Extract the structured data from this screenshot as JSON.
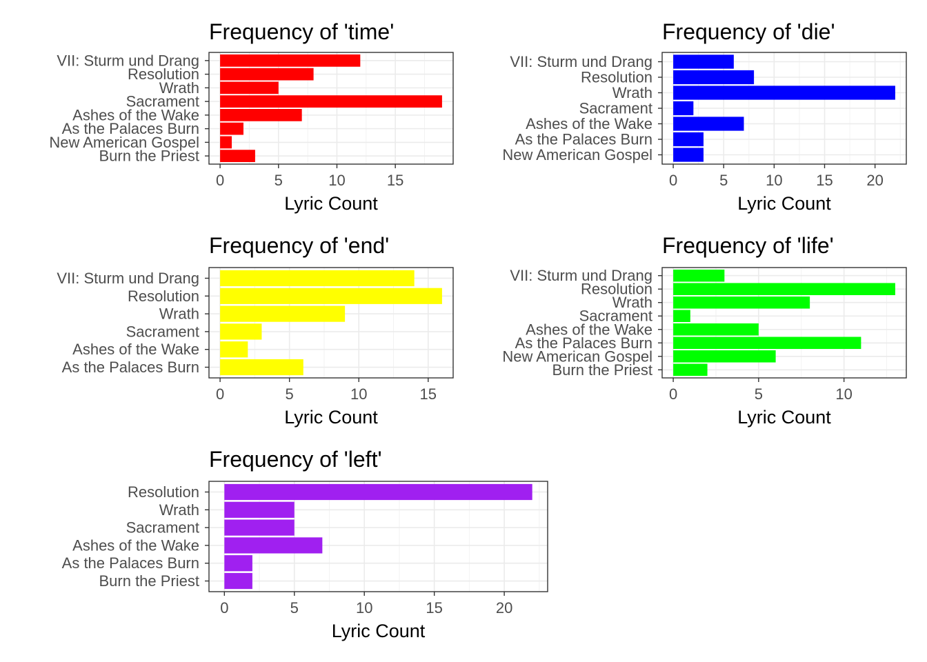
{
  "chart_data": [
    {
      "type": "bar",
      "orientation": "horizontal",
      "title": "Frequency of 'time'",
      "xlabel": "Lyric Count",
      "ylabel": "",
      "color": "#ff0000",
      "categories": [
        "VII: Sturm und Drang",
        "Resolution",
        "Wrath",
        "Sacrament",
        "Ashes of the Wake",
        "As the Palaces Burn",
        "New American Gospel",
        "Burn the Priest"
      ],
      "values": [
        12,
        8,
        5,
        19,
        7,
        2,
        1,
        3
      ],
      "xticks": [
        0,
        5,
        10,
        15
      ],
      "xlim": [
        -0.95,
        19.95
      ],
      "grid": true
    },
    {
      "type": "bar",
      "orientation": "horizontal",
      "title": "Frequency of 'die'",
      "xlabel": "Lyric Count",
      "ylabel": "",
      "color": "#0000ff",
      "categories": [
        "VII: Sturm und Drang",
        "Resolution",
        "Wrath",
        "Sacrament",
        "Ashes of the Wake",
        "As the Palaces Burn",
        "New American Gospel"
      ],
      "values": [
        6,
        8,
        22,
        2,
        7,
        3,
        3
      ],
      "xticks": [
        0,
        5,
        10,
        15,
        20
      ],
      "xlim": [
        -1.1,
        23.1
      ],
      "grid": true
    },
    {
      "type": "bar",
      "orientation": "horizontal",
      "title": "Frequency of 'end'",
      "xlabel": "Lyric Count",
      "ylabel": "",
      "color": "#ffff00",
      "categories": [
        "VII: Sturm und Drang",
        "Resolution",
        "Wrath",
        "Sacrament",
        "Ashes of the Wake",
        "As the Palaces Burn"
      ],
      "values": [
        14,
        16,
        9,
        3,
        2,
        6
      ],
      "xticks": [
        0,
        5,
        10,
        15
      ],
      "xlim": [
        -0.8,
        16.8
      ],
      "grid": true
    },
    {
      "type": "bar",
      "orientation": "horizontal",
      "title": "Frequency of 'life'",
      "xlabel": "Lyric Count",
      "ylabel": "",
      "color": "#00ff00",
      "categories": [
        "VII: Sturm und Drang",
        "Resolution",
        "Wrath",
        "Sacrament",
        "Ashes of the Wake",
        "As the Palaces Burn",
        "New American Gospel",
        "Burn the Priest"
      ],
      "values": [
        3,
        13,
        8,
        1,
        5,
        11,
        6,
        2
      ],
      "xticks": [
        0,
        5,
        10
      ],
      "xlim": [
        -0.65,
        13.65
      ],
      "grid": true
    },
    {
      "type": "bar",
      "orientation": "horizontal",
      "title": "Frequency of 'left'",
      "xlabel": "Lyric Count",
      "ylabel": "",
      "color": "#a020f0",
      "categories": [
        "Resolution",
        "Wrath",
        "Sacrament",
        "Ashes of the Wake",
        "As the Palaces Burn",
        "Burn the Priest"
      ],
      "values": [
        22,
        5,
        5,
        7,
        2,
        2
      ],
      "xticks": [
        0,
        5,
        10,
        15,
        20
      ],
      "xlim": [
        -1.1,
        23.1
      ],
      "grid": true
    }
  ]
}
